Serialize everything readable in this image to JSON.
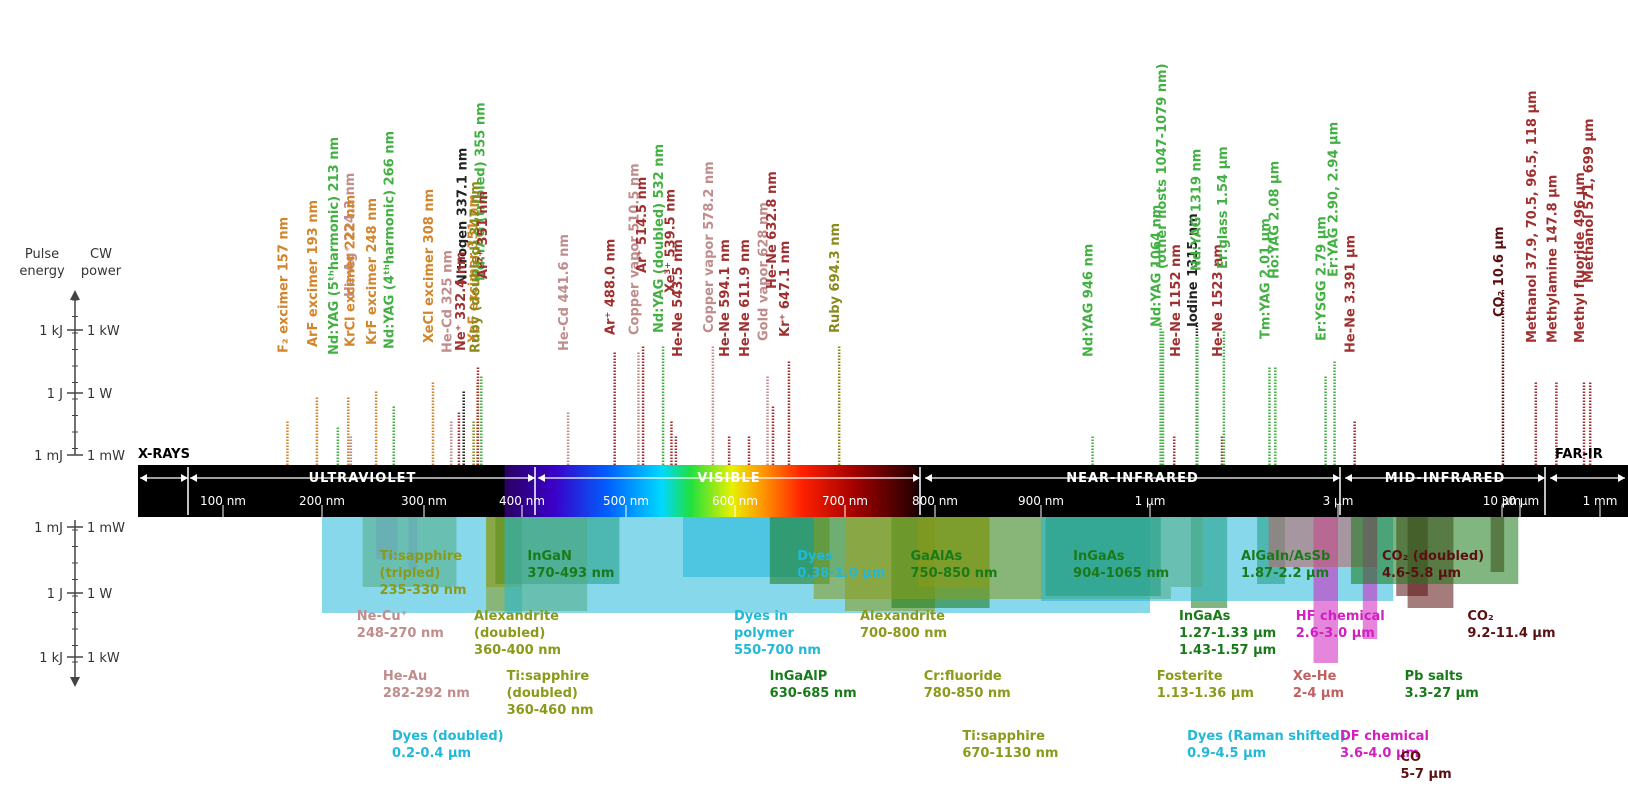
{
  "chart_data": {
    "type": "bar",
    "x_scale": "log",
    "x_unit": "nm",
    "y_axis": {
      "left_title": [
        "Pulse",
        "energy"
      ],
      "right_title": [
        "CW",
        "power"
      ],
      "upper": [
        {
          "pulse": "1 kJ",
          "cw": "1 kW"
        },
        {
          "pulse": "1 J",
          "cw": "1 W"
        },
        {
          "pulse": "1 mJ",
          "cw": "1 mW"
        }
      ],
      "lower": [
        {
          "pulse": "1 mJ",
          "cw": "1 mW"
        },
        {
          "pulse": "1 J",
          "cw": "1 W"
        },
        {
          "pulse": "1 kJ",
          "cw": "1 kW"
        }
      ]
    },
    "ticks": [
      {
        "label": "100 nm",
        "x": 100
      },
      {
        "label": "200 nm",
        "x": 200
      },
      {
        "label": "300 nm",
        "x": 300
      },
      {
        "label": "400 nm",
        "x": 400
      },
      {
        "label": "500 nm",
        "x": 500
      },
      {
        "label": "600 nm",
        "x": 600
      },
      {
        "label": "700 nm",
        "x": 700
      },
      {
        "label": "800 nm",
        "x": 800
      },
      {
        "label": "900 nm",
        "x": 900
      },
      {
        "label": "1 µm",
        "x": 1000
      },
      {
        "label": "3 µm",
        "x": 3000
      },
      {
        "label": "10 µm",
        "x": 10000
      },
      {
        "label": "30 µm",
        "x": 30000
      },
      {
        "label": "1 mm",
        "x": 1000000
      }
    ],
    "regions": [
      {
        "name": "X-RAYS"
      },
      {
        "name": "ULTRAVIOLET"
      },
      {
        "name": "VISIBLE"
      },
      {
        "name": "NEAR-INFRARED"
      },
      {
        "name": "MID-INFRARED"
      },
      {
        "name": "FAR-IR"
      }
    ],
    "gas_lasers": [
      {
        "label": "F₂ excimer  157 nm",
        "x": 157,
        "level": 0.3,
        "color": "#d2852a"
      },
      {
        "label": "ArF  excimer  193 nm",
        "x": 193,
        "level": 0.45,
        "color": "#d2852a"
      },
      {
        "label": "Nd:YAG (5ᵗʰharmonic)  213 nm",
        "x": 213,
        "level": 0.25,
        "color": "#43b043"
      },
      {
        "label": "He-Ag⁺  224.3 nm",
        "x": 224.3,
        "level": 0.2,
        "color": "#c08c8c"
      },
      {
        "label": "KrCl  excimer  222 nm",
        "x": 222,
        "level": 0.45,
        "color": "#d2852a"
      },
      {
        "label": "KrF  excimer  248 nm",
        "x": 248,
        "level": 0.5,
        "color": "#d2852a"
      },
      {
        "label": "Nd:YAG (4ᵗʰharmonic)  266 nm",
        "x": 266,
        "level": 0.4,
        "color": "#43b043"
      },
      {
        "label": "XeCl  excimer  308 nm",
        "x": 308,
        "level": 0.55,
        "color": "#d2852a"
      },
      {
        "label": "He-Cd  325 nm",
        "x": 325,
        "level": 0.3,
        "color": "#c08c8c"
      },
      {
        "label": "Nitrogen  337.1 nm",
        "x": 337.1,
        "level": 0.5,
        "color": "#222222"
      },
      {
        "label": "Ne⁺  332.4 nm",
        "x": 332.4,
        "level": 0.35,
        "color": "#a03030"
      },
      {
        "label": "XeF  excimer  351 nm",
        "x": 351,
        "level": 0.55,
        "color": "#d2852a"
      },
      {
        "label": "Nd:YAG (tripled)  355 nm",
        "x": 355,
        "level": 0.6,
        "color": "#43b043"
      },
      {
        "label": "Ruby (doubled)  347 nm",
        "x": 347,
        "level": 0.3,
        "color": "#8a8a1a"
      },
      {
        "label": "Ar²⁺  351 nm",
        "x": 351.5,
        "level": 0.65,
        "color": "#a03030"
      },
      {
        "label": "He-Cd  441.6 nm",
        "x": 441.6,
        "level": 0.35,
        "color": "#c08c8c"
      },
      {
        "label": "Ar⁺  488.0 nm",
        "x": 488,
        "level": 0.75,
        "color": "#a03030"
      },
      {
        "label": "Copper vapor  510.5 nm",
        "x": 510.5,
        "level": 0.75,
        "color": "#c08c8c"
      },
      {
        "label": "Ar⁺  514.5 nm",
        "x": 514.5,
        "level": 0.8,
        "color": "#a03030"
      },
      {
        "label": "Nd:YAG (doubled)  532 nm",
        "x": 532,
        "level": 0.8,
        "color": "#43b043"
      },
      {
        "label": "Xe³⁺  539.5 nm",
        "x": 539.5,
        "level": 0.3,
        "color": "#a03030"
      },
      {
        "label": "He-Ne  543.5 nm",
        "x": 543.5,
        "level": 0.2,
        "color": "#a03030"
      },
      {
        "label": "Copper vapor  578.2 nm",
        "x": 578.2,
        "level": 0.8,
        "color": "#c08c8c"
      },
      {
        "label": "He-Ne  594.1 nm",
        "x": 594.1,
        "level": 0.2,
        "color": "#a03030"
      },
      {
        "label": "He-Ne  611.9 nm",
        "x": 611.9,
        "level": 0.2,
        "color": "#a03030"
      },
      {
        "label": "Gold vapor  628 nm",
        "x": 628,
        "level": 0.6,
        "color": "#c08c8c"
      },
      {
        "label": "He-Ne  632.8 nm",
        "x": 632.8,
        "level": 0.4,
        "color": "#a03030"
      },
      {
        "label": "Kr⁺  647.1 nm",
        "x": 647.1,
        "level": 0.7,
        "color": "#a03030"
      },
      {
        "label": "Ruby  694.3 nm",
        "x": 694.3,
        "level": 0.8,
        "color": "#8a8a1a"
      },
      {
        "label": "Nd:YAG  946 nm",
        "x": 946,
        "level": 0.2,
        "color": "#43b043"
      },
      {
        "label": "Nd:YAG  1064 nm",
        "x": 1064,
        "level": 0.95,
        "color": "#43b043"
      },
      {
        "label": "(other hosts  1047-1079 nm)",
        "x": 1079,
        "level": 0.9,
        "color": "#43b043"
      },
      {
        "label": "He-Ne  1152 nm",
        "x": 1152,
        "level": 0.2,
        "color": "#a03030"
      },
      {
        "label": "Iodine  1315 nm",
        "x": 1315,
        "level": 0.95,
        "color": "#222222"
      },
      {
        "label": "Nd:YAG  1319 nm",
        "x": 1319,
        "level": 0.85,
        "color": "#43b043"
      },
      {
        "label": "He-Ne  1523 nm",
        "x": 1523,
        "level": 0.2,
        "color": "#a03030"
      },
      {
        "label": "Er:glass  1.54 µm",
        "x": 1540,
        "level": 0.9,
        "color": "#43b043"
      },
      {
        "label": "Tm:YAG  2.01 µm",
        "x": 2010,
        "level": 0.65,
        "color": "#43b043"
      },
      {
        "label": "Ho:YAG  2.08 µm",
        "x": 2080,
        "level": 0.65,
        "color": "#43b043"
      },
      {
        "label": "Er:YSGG  2.79 µm",
        "x": 2790,
        "level": 0.6,
        "color": "#43b043"
      },
      {
        "label": "Er:YAG  2.90, 2.94 µm",
        "x": 2940,
        "level": 0.7,
        "color": "#43b043"
      },
      {
        "label": "He-Ne  3.391 µm",
        "x": 3391,
        "level": 0.3,
        "color": "#a03030"
      },
      {
        "label": "CO₂  10.6 µm",
        "x": 10600,
        "level": 1.2,
        "color": "#5a1010"
      },
      {
        "label": "Methanol  37.9, 70.5, 96.5, 118 µm",
        "x": 60000,
        "level": 0.55,
        "color": "#a03030"
      },
      {
        "label": "Methylamine  147.8 µm",
        "x": 147800,
        "level": 0.55,
        "color": "#a03030"
      },
      {
        "label": "Methyl fluoride  496 µm",
        "x": 496000,
        "level": 0.55,
        "color": "#a03030"
      },
      {
        "label": "Methanol  571, 699 µm",
        "x": 650000,
        "level": 0.55,
        "color": "#a03030"
      }
    ],
    "tunable_lasers": [
      {
        "label": [
          "Ti:sapphire",
          "(tripled)",
          "235-330 nm"
        ],
        "range": [
          235,
          330
        ],
        "color": "#8a9a1a"
      },
      {
        "label": [
          "Ne-Cu⁺",
          "248-270 nm"
        ],
        "range": [
          248,
          270
        ],
        "color": "#c08c8c"
      },
      {
        "label": [
          "He-Au",
          "282-292 nm"
        ],
        "range": [
          282,
          292
        ],
        "color": "#c08c8c"
      },
      {
        "label": [
          "Dyes (doubled)",
          "0.2-0.4 µm"
        ],
        "range": [
          200,
          400
        ],
        "color": "#22b8d8"
      },
      {
        "label": [
          "Alexandrite",
          "(doubled)",
          "360-400 nm"
        ],
        "range": [
          360,
          400
        ],
        "color": "#8a9a1a"
      },
      {
        "label": [
          "InGaN",
          "370-493 nm"
        ],
        "range": [
          370,
          493
        ],
        "color": "#1a7a1a"
      },
      {
        "label": [
          "Ti:sapphire",
          "(doubled)",
          "360-460 nm"
        ],
        "range": [
          360,
          460
        ],
        "color": "#8a9a1a"
      },
      {
        "label": [
          "Dyes",
          "0.38-1.0 µm"
        ],
        "range": [
          380,
          1000
        ],
        "color": "#22b8d8"
      },
      {
        "label": [
          "Dyes in",
          "polymer",
          "550-700 nm"
        ],
        "range": [
          550,
          700
        ],
        "color": "#22b8d8"
      },
      {
        "label": [
          "InGaAlP",
          "630-685 nm"
        ],
        "range": [
          630,
          685
        ],
        "color": "#1a7a1a"
      },
      {
        "label": [
          "Alexandrite",
          "700-800 nm"
        ],
        "range": [
          700,
          800
        ],
        "color": "#8a9a1a"
      },
      {
        "label": [
          "GaAlAs",
          "750-850 nm"
        ],
        "range": [
          750,
          850
        ],
        "color": "#1a7a1a"
      },
      {
        "label": [
          "Cr:fluoride",
          "780-850 nm"
        ],
        "range": [
          780,
          850
        ],
        "color": "#8a9a1a"
      },
      {
        "label": [
          "Ti:sapphire",
          "670-1130 nm"
        ],
        "range": [
          670,
          1130
        ],
        "color": "#8a9a1a"
      },
      {
        "label": [
          "InGaAs",
          "904-1065 nm"
        ],
        "range": [
          904,
          1065
        ],
        "color": "#1a7a1a"
      },
      {
        "label": [
          "InGaAs",
          "1.27-1.33 µm",
          "1.43-1.57 µm"
        ],
        "range": [
          1270,
          1570
        ],
        "color": "#1a7a1a"
      },
      {
        "label": [
          "Fosterite",
          "1.13-1.36 µm"
        ],
        "range": [
          1130,
          1360
        ],
        "color": "#8a9a1a"
      },
      {
        "label": [
          "AlGaIn/AsSb",
          "1.87-2.2 µm"
        ],
        "range": [
          1870,
          2200
        ],
        "color": "#1a7a1a"
      },
      {
        "label": [
          "Dyes (Raman shifted)",
          "0.9-4.5 µm"
        ],
        "range": [
          900,
          4500
        ],
        "color": "#22b8d8"
      },
      {
        "label": [
          "HF chemical",
          "2.6-3.0 µm"
        ],
        "range": [
          2600,
          3000
        ],
        "color": "#d020c0"
      },
      {
        "label": [
          "Xe-He",
          "2-4 µm"
        ],
        "range": [
          2000,
          4000
        ],
        "color": "#c06060"
      },
      {
        "label": [
          "DF chemical",
          "3.6-4.0 µm"
        ],
        "range": [
          3600,
          4000
        ],
        "color": "#d020c0"
      },
      {
        "label": [
          "CO₂ (doubled)",
          "4.6-5.8 µm"
        ],
        "range": [
          4600,
          5800
        ],
        "color": "#5a1010"
      },
      {
        "label": [
          "CO",
          "5-7 µm"
        ],
        "range": [
          5000,
          7000
        ],
        "color": "#5a1010"
      },
      {
        "label": [
          "CO₂",
          "9.2-11.4 µm"
        ],
        "range": [
          9200,
          11400
        ],
        "color": "#5a1010"
      },
      {
        "label": [
          "Pb salts",
          "3.3-27 µm"
        ],
        "range": [
          3300,
          27000
        ],
        "color": "#1a7a1a"
      }
    ]
  }
}
